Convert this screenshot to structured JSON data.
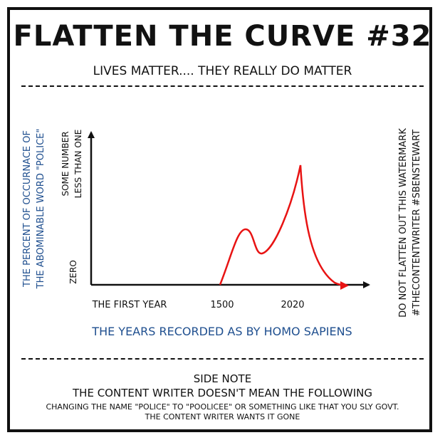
{
  "header": {
    "title": "FLATTEN THE CURVE #32",
    "subtitle": "LIVES MATTER.... THEY REALLY DO MATTER"
  },
  "chart_data": {
    "type": "line",
    "ylabel_lines": [
      "THE PERCENT OF OCCURNACE OF",
      "THE ABOMINABLE WORD \"POLICE\""
    ],
    "xlabel": "THE YEARS RECORDED AS BY HOMO SAPIENS",
    "y_tick_labels": {
      "zero": "ZERO",
      "top_lines": [
        "SOME NUMBER",
        "LESS THAN ONE"
      ]
    },
    "x_tick_labels": [
      "THE FIRST YEAR",
      "1500",
      "2020"
    ],
    "series": [
      {
        "color": "#e81313",
        "shape": "two humps: rises from 1500 to a first peak, dips, then rises to a higher peak at 2020, then falls back to zero"
      }
    ],
    "axis_color": "#111111",
    "label_color": "#1f4f8f"
  },
  "side_note": {
    "watermark_lines": [
      "DO NOT FLATTEN OUT THIS WATERMARK",
      "#THECONTENTWRITER #SBENSTEWART"
    ]
  },
  "footer": {
    "line1": "SIDE NOTE",
    "line2": "THE CONTENT WRITER DOESN'T MEAN THE FOLLOWING",
    "line3": "CHANGING THE NAME \"POLICE\" TO \"POOLICEE\" OR SOMETHING LIKE THAT YOU SLY GOVT.",
    "line4": "THE CONTENT WRITER WANTS IT GONE"
  }
}
